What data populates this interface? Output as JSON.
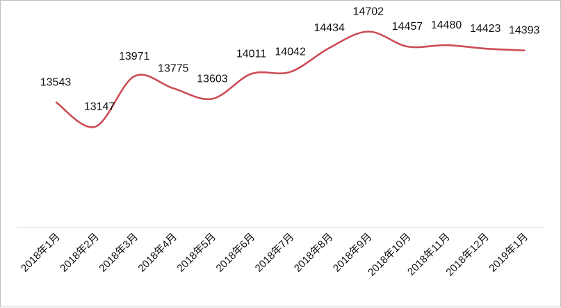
{
  "chart_data": {
    "type": "line",
    "categories": [
      "2018年1月",
      "2018年2月",
      "2018年3月",
      "2018年4月",
      "2018年5月",
      "2018年6月",
      "2018年7月",
      "2018年8月",
      "2018年9月",
      "2018年10月",
      "2018年11月",
      "2018年12月",
      "2019年1月"
    ],
    "values": [
      13543,
      13147,
      13971,
      13775,
      13603,
      14011,
      14042,
      14434,
      14702,
      14457,
      14480,
      14423,
      14393
    ],
    "data_labels": [
      "13543",
      "13147",
      "13971",
      "13775",
      "13603",
      "14011",
      "14042",
      "14434",
      "14702",
      "14457",
      "14480",
      "14423",
      "14393"
    ],
    "title": "",
    "xlabel": "",
    "ylabel": "",
    "ylim": [
      11500,
      14900
    ],
    "grid": false,
    "legend": "none",
    "line_color": "#cc4b55",
    "axis_color": "#d9d9d9"
  }
}
